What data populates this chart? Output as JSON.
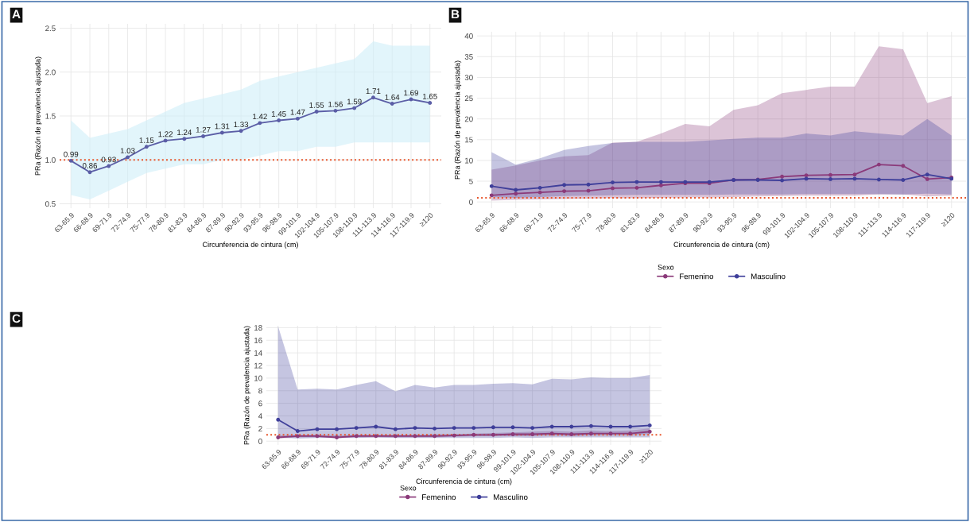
{
  "chart_data": [
    {
      "type": "line",
      "annotations": [
        "A"
      ],
      "xlabel": "Circunferencia de cintura (cm)",
      "ylabel": "PRa (Razón de prevalencia ajustada)",
      "categories": [
        "63-65.9",
        "66-68.9",
        "69-71.9",
        "72-74.9",
        "75-77.9",
        "78-80.9",
        "81-83.9",
        "84-86.9",
        "87-89.9",
        "90-92.9",
        "93-95.9",
        "96-98.9",
        "99-101.9",
        "102-104.9",
        "105-107.9",
        "108-110.9",
        "111-113.9",
        "114-116.9",
        "117-119.9",
        "≥120"
      ],
      "series": [
        {
          "color": "#5b5ea6",
          "values": [
            0.99,
            0.86,
            0.93,
            1.03,
            1.15,
            1.22,
            1.24,
            1.27,
            1.31,
            1.33,
            1.42,
            1.45,
            1.47,
            1.55,
            1.56,
            1.59,
            1.71,
            1.64,
            1.69,
            1.65
          ],
          "lower": [
            0.6,
            0.55,
            0.65,
            0.75,
            0.85,
            0.9,
            0.95,
            0.95,
            1.0,
            1.0,
            1.05,
            1.1,
            1.1,
            1.15,
            1.15,
            1.2,
            1.2,
            1.2,
            1.2,
            1.2
          ],
          "upper": [
            1.45,
            1.25,
            1.3,
            1.35,
            1.45,
            1.55,
            1.65,
            1.7,
            1.75,
            1.8,
            1.9,
            1.95,
            2.0,
            2.05,
            2.1,
            2.15,
            2.35,
            2.3,
            2.3,
            2.3
          ]
        }
      ],
      "ylim": [
        0.45,
        2.55
      ],
      "yticks": [
        {
          "value": 0.5,
          "label": "0.5"
        },
        {
          "value": 1,
          "label": "1.0"
        },
        {
          "value": 1.5,
          "label": "1.5"
        },
        {
          "value": 2,
          "label": "2.0"
        },
        {
          "value": 2.5,
          "label": "2.5"
        }
      ],
      "grid": true,
      "marker": "circle",
      "data_labels": true,
      "legend": false,
      "ref_lines": [
        {
          "axis": "y",
          "value": 1,
          "color": "#e8542a",
          "line_style": "dotted"
        }
      ]
    },
    {
      "type": "line",
      "annotations": [
        "B"
      ],
      "xlabel": "Circunferencia de cintura (cm)",
      "ylabel": "PRa (Razón de prevalencia ajustada)",
      "legend_title": "Sexo",
      "categories": [
        "63-65.9",
        "66-68.9",
        "69-71.9",
        "72-74.9",
        "75-77.9",
        "78-80.9",
        "81-83.9",
        "84-86.9",
        "87-89.9",
        "90-92.9",
        "93-95.9",
        "96-98.9",
        "99-101.9",
        "102-104.9",
        "105-107.9",
        "108-110.9",
        "111-113.9",
        "114-116.9",
        "117-119.9",
        "≥120"
      ],
      "series": [
        {
          "name": "Femenino",
          "color": "#8b3a7a",
          "values": [
            1.6,
            2.0,
            2.3,
            2.6,
            2.7,
            3.3,
            3.4,
            4.0,
            4.5,
            4.5,
            5.3,
            5.4,
            6.1,
            6.4,
            6.5,
            6.6,
            9.0,
            8.7,
            5.5,
            5.9
          ],
          "lower": [
            0.3,
            0.5,
            0.6,
            0.7,
            0.8,
            0.9,
            0.9,
            1.0,
            1.1,
            1.1,
            1.2,
            1.3,
            1.4,
            1.5,
            1.5,
            1.5,
            1.8,
            1.8,
            1.3,
            1.5
          ],
          "upper": [
            7.8,
            8.8,
            10,
            11,
            11.3,
            14.3,
            14.5,
            16.5,
            18.8,
            18.2,
            22.2,
            23.3,
            26.2,
            27,
            27.8,
            27.8,
            37.5,
            36.8,
            23.8,
            25.5
          ]
        },
        {
          "name": "Masculino",
          "color": "#3f3f9a",
          "values": [
            3.8,
            2.9,
            3.4,
            4.1,
            4.2,
            4.7,
            4.8,
            4.8,
            4.8,
            4.8,
            5.3,
            5.3,
            5.2,
            5.6,
            5.5,
            5.6,
            5.4,
            5.3,
            6.6,
            5.6
          ],
          "lower": [
            1.2,
            1.0,
            1.2,
            1.4,
            1.5,
            1.6,
            1.7,
            1.7,
            1.7,
            1.7,
            1.8,
            1.8,
            1.8,
            1.9,
            1.9,
            1.9,
            1.9,
            1.8,
            2.0,
            1.8
          ],
          "upper": [
            12,
            9,
            10.5,
            12.5,
            13.5,
            14.2,
            14.5,
            14.5,
            14.5,
            14.8,
            15.2,
            15.5,
            15.5,
            16.5,
            16,
            17,
            16.5,
            16,
            20,
            16
          ]
        }
      ],
      "ylim": [
        -1.5,
        41
      ],
      "yticks": [
        0,
        5,
        10,
        15,
        20,
        25,
        30,
        35,
        40
      ],
      "grid": true,
      "marker": "circle",
      "legend": "bottom",
      "ref_lines": [
        {
          "axis": "y",
          "value": 1,
          "color": "#e8542a",
          "line_style": "dotted"
        }
      ]
    },
    {
      "type": "line",
      "annotations": [
        "C"
      ],
      "xlabel": "Circunferencia de cintura (cm)",
      "ylabel": "PRa (Razón de prevalencia ajustada)",
      "legend_title": "Sexo",
      "categories": [
        "63-65.9",
        "66-68.9",
        "69-71.9",
        "72-74.9",
        "75-77.9",
        "78-80.9",
        "81-83.9",
        "84-86.9",
        "87-89.9",
        "90-92.9",
        "93-95.9",
        "96-98.9",
        "99-101.9",
        "102-104.9",
        "105-107.9",
        "108-110.9",
        "111-113.9",
        "114-116.9",
        "117-119.9",
        "≥120"
      ],
      "series": [
        {
          "name": "Femenino",
          "color": "#8b3a7a",
          "values": [
            0.6,
            0.8,
            0.8,
            0.6,
            0.8,
            0.8,
            0.8,
            0.8,
            0.8,
            0.9,
            1.0,
            1.0,
            1.1,
            1.1,
            1.2,
            1.1,
            1.2,
            1.2,
            1.2,
            1.5
          ],
          "lower": [
            0.4,
            0.6,
            0.6,
            0.5,
            0.6,
            0.6,
            0.6,
            0.6,
            0.6,
            0.7,
            0.8,
            0.8,
            0.8,
            0.8,
            0.9,
            0.8,
            0.9,
            0.9,
            0.9,
            1.1
          ],
          "upper": [
            0.9,
            1.0,
            1.0,
            0.9,
            1.0,
            1.0,
            1.0,
            1.0,
            1.1,
            1.1,
            1.2,
            1.3,
            1.4,
            1.5,
            1.6,
            1.5,
            1.7,
            1.6,
            1.7,
            2.0
          ]
        },
        {
          "name": "Masculino",
          "color": "#3f3f9a",
          "values": [
            3.4,
            1.6,
            1.9,
            1.9,
            2.1,
            2.3,
            1.9,
            2.1,
            2.0,
            2.1,
            2.1,
            2.2,
            2.2,
            2.1,
            2.3,
            2.3,
            2.4,
            2.3,
            2.3,
            2.5
          ],
          "lower": [
            0.6,
            0.4,
            0.5,
            0.5,
            0.5,
            0.6,
            0.5,
            0.5,
            0.5,
            0.5,
            0.5,
            0.5,
            0.6,
            0.5,
            0.6,
            0.6,
            0.6,
            0.6,
            0.6,
            0.6
          ],
          "upper": [
            18.2,
            8.2,
            8.3,
            8.2,
            8.9,
            9.5,
            7.9,
            8.9,
            8.5,
            8.9,
            8.9,
            9.1,
            9.2,
            9.0,
            9.9,
            9.8,
            10.1,
            10.0,
            10.0,
            10.5
          ]
        }
      ],
      "ylim": [
        -0.6,
        18.3
      ],
      "yticks": [
        0,
        2,
        4,
        6,
        8,
        10,
        12,
        14,
        16,
        18
      ],
      "grid": true,
      "marker": "circle",
      "legend": "bottom",
      "ref_lines": [
        {
          "axis": "y",
          "value": 1,
          "color": "#e8542a",
          "line_style": "dotted"
        }
      ]
    }
  ]
}
